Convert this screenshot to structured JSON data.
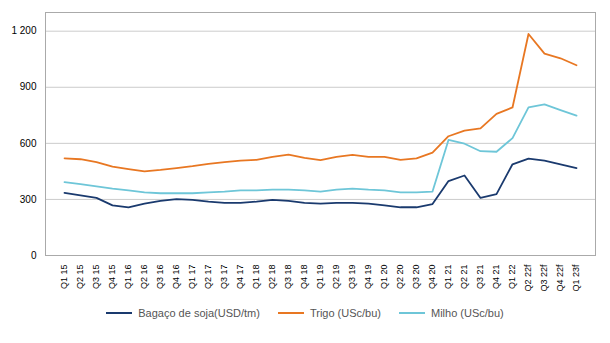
{
  "chart_data": {
    "type": "line",
    "categories": [
      "Q1 15",
      "Q2 15",
      "Q3 15",
      "Q4 15",
      "Q1 16",
      "Q2 16",
      "Q3 16",
      "Q4 16",
      "Q1 17",
      "Q2 17",
      "Q3 17",
      "Q4 17",
      "Q1 18",
      "Q2 18",
      "Q3 18",
      "Q4 18",
      "Q1 19",
      "Q2 19",
      "Q3 19",
      "Q4 19",
      "Q1 20",
      "Q2 20",
      "Q3 20",
      "Q4 20",
      "Q1 21",
      "Q2 21",
      "Q3 21",
      "Q4 21",
      "Q1 22",
      "Q2 22f",
      "Q3 22f",
      "Q4 22f",
      "Q1 23f"
    ],
    "series": [
      {
        "name": "Bagaço de soja(USD/tm)",
        "color": "#1A3A6E",
        "values": [
          335,
          322,
          308,
          268,
          258,
          278,
          292,
          302,
          298,
          288,
          282,
          282,
          288,
          298,
          292,
          282,
          278,
          282,
          282,
          278,
          268,
          258,
          258,
          275,
          398,
          428,
          308,
          328,
          488,
          518,
          508,
          488,
          468
        ]
      },
      {
        "name": "Trigo (USc/bu)",
        "color": "#E87722",
        "values": [
          520,
          515,
          500,
          475,
          462,
          450,
          458,
          468,
          478,
          490,
          500,
          508,
          512,
          528,
          540,
          522,
          510,
          528,
          538,
          528,
          528,
          512,
          520,
          550,
          638,
          668,
          680,
          758,
          792,
          1185,
          1080,
          1055,
          1018
        ]
      },
      {
        "name": "Milho (USc/bu)",
        "color": "#6EC6D8",
        "values": [
          392,
          382,
          370,
          358,
          348,
          338,
          333,
          333,
          333,
          338,
          342,
          348,
          348,
          352,
          352,
          348,
          342,
          352,
          358,
          352,
          348,
          338,
          338,
          342,
          618,
          598,
          558,
          555,
          628,
          792,
          808,
          778,
          748
        ]
      }
    ],
    "ylim": [
      0,
      1300
    ],
    "yticks": [
      0,
      300,
      600,
      900,
      {
        "value": 1200,
        "label": "1 200"
      }
    ],
    "grid": true,
    "legend": "bottom"
  }
}
